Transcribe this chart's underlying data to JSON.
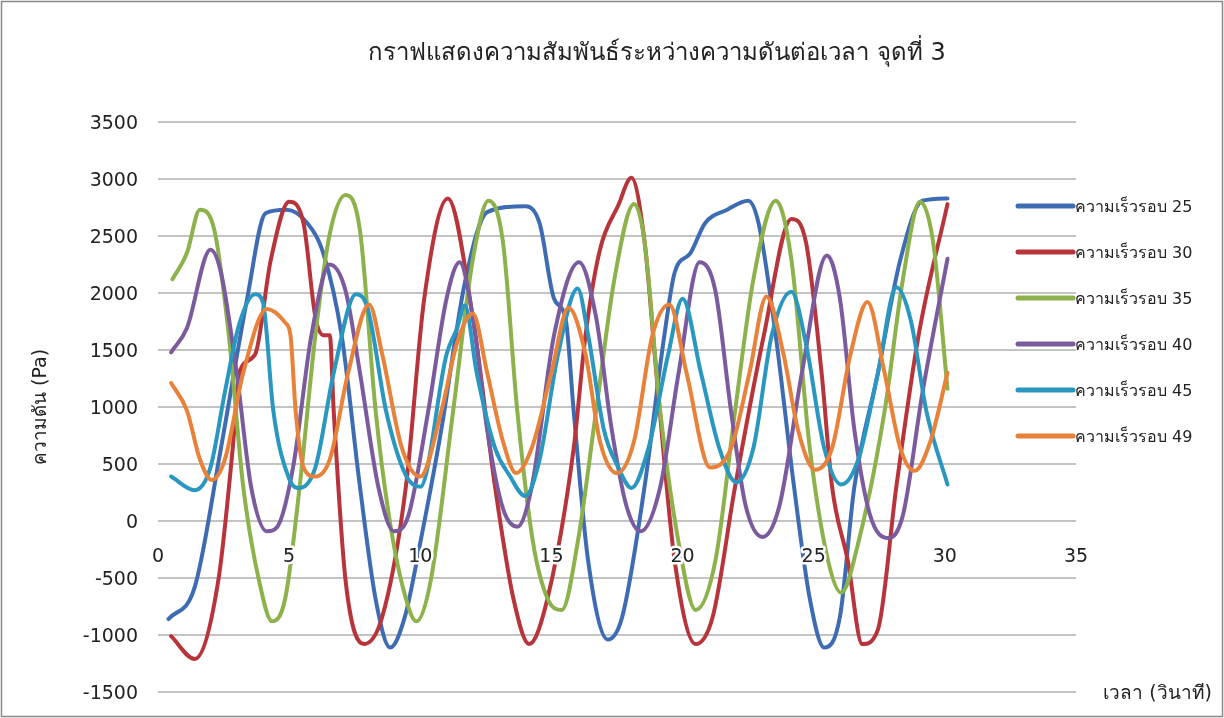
{
  "chart_data": {
    "type": "line",
    "title": "กราฟแสดงความสัมพันธ์ระหว่างความดันต่อเวลา จุดที่ 3",
    "xlabel": "เวลา (วินาที)",
    "ylabel": "ความดัน (Pa)",
    "xlim": [
      0,
      35
    ],
    "xticks": [
      0,
      5,
      10,
      15,
      20,
      25,
      30,
      35
    ],
    "ylim": [
      -1500,
      3500
    ],
    "yticks": [
      -1500,
      -1000,
      -500,
      0,
      500,
      1000,
      1500,
      2000,
      2500,
      3000,
      3500
    ],
    "grid": "y",
    "legend": "right",
    "series": [
      {
        "name": "ความเร็วรอบ 25",
        "color": "#3d6cb3",
        "x": [
          0.4,
          1.4,
          2.4,
          3.4,
          4.1,
          4.9,
          5.7,
          6.3,
          7.0,
          7.7,
          8.3,
          8.85,
          9.4,
          10.0,
          10.8,
          11.7,
          12.55,
          14.0,
          14.55,
          15.1,
          15.55,
          15.85,
          16.4,
          17.15,
          17.7,
          18.55,
          19.3,
          19.7,
          20.3,
          20.85,
          21.7,
          22.5,
          22.9,
          23.55,
          24.25,
          24.85,
          25.4,
          26.0,
          26.55,
          27.45,
          28.3,
          29.15,
          30.1
        ],
        "values": [
          -860,
          -580,
          640,
          1950,
          2700,
          2730,
          2610,
          2350,
          1630,
          300,
          -690,
          -1110,
          -850,
          -190,
          800,
          2090,
          2710,
          2760,
          2610,
          1950,
          1760,
          960,
          -350,
          -1040,
          -840,
          300,
          1620,
          2180,
          2350,
          2610,
          2730,
          2810,
          2610,
          1630,
          300,
          -680,
          -1110,
          -840,
          300,
          1300,
          2290,
          2810,
          2830
        ]
      },
      {
        "name": "ความเร็วรอบ 30",
        "color": "#b8343b",
        "x": [
          0.5,
          1.4,
          2.3,
          2.85,
          3.1,
          3.7,
          4.3,
          5.0,
          5.55,
          6.0,
          6.3,
          6.55,
          6.7,
          7.15,
          7.85,
          8.55,
          9.45,
          10.15,
          11.05,
          12.0,
          12.85,
          13.55,
          14.15,
          14.85,
          15.85,
          16.3,
          16.85,
          17.55,
          18.05,
          18.55,
          19.0,
          19.7,
          20.5,
          21.15,
          22.0,
          23.1,
          24.15,
          24.7,
          25.3,
          25.7,
          26.3,
          26.85,
          27.45,
          28.15,
          29.0,
          30.1
        ],
        "values": [
          -1010,
          -1210,
          -520,
          640,
          1300,
          1460,
          2290,
          2800,
          2610,
          1790,
          1630,
          1630,
          960,
          -520,
          -1080,
          -840,
          300,
          1950,
          2830,
          1790,
          300,
          -680,
          -1080,
          -680,
          640,
          1630,
          2380,
          2770,
          3010,
          2450,
          1300,
          -350,
          -1080,
          -840,
          300,
          1630,
          2650,
          2450,
          1300,
          300,
          -350,
          -1080,
          -950,
          300,
          1630,
          2780
        ]
      },
      {
        "name": "ความเร็วรอบ 35",
        "color": "#8db14b",
        "x": [
          0.55,
          1.1,
          1.6,
          2.15,
          2.7,
          3.25,
          3.85,
          4.35,
          4.85,
          5.4,
          6.0,
          6.55,
          7.15,
          7.7,
          8.3,
          8.85,
          9.45,
          9.85,
          10.4,
          11.25,
          12.0,
          12.6,
          13.15,
          13.7,
          14.3,
          14.85,
          15.4,
          16.0,
          16.7,
          17.4,
          18.15,
          18.55,
          19.15,
          19.85,
          20.5,
          21.25,
          22.0,
          22.7,
          23.55,
          24.15,
          24.85,
          25.55,
          26.05,
          26.7,
          27.7,
          28.4,
          29.05,
          29.55,
          30.1
        ],
        "values": [
          2120,
          2350,
          2730,
          2550,
          1630,
          300,
          -520,
          -880,
          -680,
          300,
          1630,
          2520,
          2860,
          2550,
          960,
          -20,
          -680,
          -880,
          -520,
          960,
          2290,
          2810,
          2450,
          960,
          -190,
          -680,
          -780,
          -190,
          960,
          2120,
          2780,
          2450,
          960,
          -190,
          -780,
          -350,
          960,
          2120,
          2810,
          2290,
          640,
          -350,
          -630,
          -190,
          960,
          2120,
          2800,
          2450,
          1160
        ]
      },
      {
        "name": "ความเร็วรอบ 40",
        "color": "#7b5b9d",
        "x": [
          0.5,
          1.1,
          2.0,
          2.4,
          3.0,
          3.55,
          4.15,
          4.55,
          5.15,
          5.85,
          6.55,
          7.15,
          7.7,
          8.4,
          9.0,
          9.55,
          10.3,
          11.0,
          11.5,
          12.0,
          12.55,
          13.15,
          13.7,
          14.25,
          15.1,
          16.05,
          16.7,
          17.3,
          17.85,
          18.4,
          19.15,
          19.85,
          20.65,
          21.25,
          21.85,
          22.4,
          23.05,
          23.7,
          24.55,
          25.5,
          26.0,
          26.55,
          27.15,
          27.85,
          28.4,
          29.15,
          30.1
        ],
        "values": [
          1480,
          1690,
          2380,
          2180,
          1300,
          300,
          -90,
          -50,
          470,
          1630,
          2250,
          2020,
          1300,
          300,
          -90,
          50,
          960,
          1950,
          2270,
          1790,
          800,
          110,
          -50,
          300,
          1630,
          2270,
          1790,
          800,
          140,
          -90,
          300,
          1300,
          2270,
          2020,
          960,
          140,
          -140,
          140,
          1300,
          2330,
          1950,
          800,
          50,
          -150,
          50,
          1130,
          2300
        ]
      },
      {
        "name": "ความเร็วรอบ 45",
        "color": "#2a97c0",
        "x": [
          0.5,
          1.4,
          2.0,
          2.55,
          3.1,
          3.7,
          4.0,
          4.4,
          5.0,
          5.4,
          6.0,
          6.7,
          7.55,
          8.0,
          8.7,
          9.45,
          10.0,
          11.0,
          11.4,
          11.7,
          12.15,
          12.85,
          13.4,
          14.0,
          14.55,
          15.25,
          16.0,
          16.4,
          17.0,
          17.55,
          18.05,
          18.7,
          19.45,
          20.0,
          20.7,
          21.4,
          22.05,
          22.7,
          23.4,
          24.15,
          24.7,
          25.4,
          26.05,
          26.7,
          27.45,
          28.15,
          28.7,
          29.3,
          30.1
        ],
        "values": [
          390,
          270,
          470,
          1130,
          1730,
          1990,
          1920,
          960,
          370,
          290,
          470,
          1300,
          1990,
          1860,
          960,
          400,
          300,
          1460,
          1690,
          1890,
          1300,
          640,
          400,
          220,
          540,
          1460,
          2040,
          1630,
          800,
          470,
          290,
          640,
          1460,
          1950,
          1300,
          640,
          340,
          640,
          1630,
          2010,
          1560,
          640,
          320,
          540,
          1300,
          2050,
          1760,
          960,
          320
        ]
      },
      {
        "name": "ความเร็วรอบ 49",
        "color": "#e8823a",
        "x": [
          0.5,
          1.1,
          1.6,
          2.05,
          2.55,
          3.25,
          4.15,
          4.85,
          5.05,
          5.25,
          5.55,
          6.0,
          6.55,
          7.25,
          8.05,
          8.55,
          9.3,
          10.0,
          10.8,
          11.4,
          12.0,
          12.55,
          13.15,
          13.65,
          14.25,
          15.0,
          15.65,
          16.3,
          16.85,
          17.5,
          18.15,
          18.85,
          19.5,
          20.15,
          21.05,
          21.85,
          22.55,
          23.2,
          23.85,
          24.4,
          25.05,
          25.7,
          26.4,
          27.05,
          27.7,
          28.3,
          28.85,
          29.45,
          30.1
        ],
        "values": [
          1210,
          970,
          540,
          360,
          540,
          1300,
          1860,
          1740,
          1630,
          960,
          470,
          390,
          540,
          1300,
          1900,
          1460,
          640,
          390,
          960,
          1560,
          1820,
          1300,
          700,
          420,
          640,
          1300,
          1870,
          1460,
          700,
          420,
          700,
          1630,
          1900,
          1300,
          470,
          640,
          1300,
          1970,
          1460,
          800,
          450,
          640,
          1460,
          1920,
          1300,
          640,
          440,
          700,
          1300
        ]
      }
    ]
  }
}
